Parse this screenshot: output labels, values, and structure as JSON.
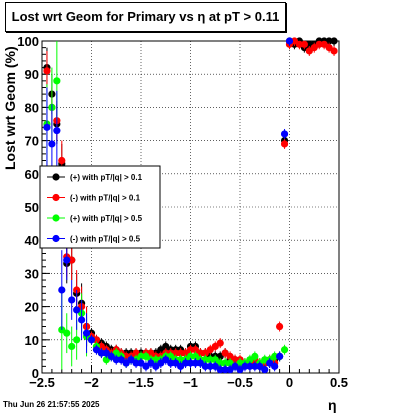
{
  "chart_data": {
    "type": "scatter",
    "title": "Lost wrt Geom for Primary vs    η  at pT > 0.11",
    "xlabel": "η",
    "ylabel": "Lost wrt Geom (%)",
    "xlim": [
      -2.5,
      0.5
    ],
    "ylim": [
      0,
      100
    ],
    "x_ticks": [
      "−2.5",
      "−2",
      "−1.5",
      "−1",
      "−0.5",
      "0",
      "0.5"
    ],
    "y_ticks": [
      "0",
      "10",
      "20",
      "30",
      "40",
      "50",
      "60",
      "70",
      "80",
      "90",
      "100"
    ],
    "grid": true,
    "legend_position": "middle-left",
    "timestamp": "Thu Jun 26 21:57:55 2025",
    "series": [
      {
        "name": "(+) with pT/|q| > 0.1",
        "color": "#000000",
        "x": [
          -2.45,
          -2.4,
          -2.35,
          -2.3,
          -2.25,
          -2.2,
          -2.15,
          -2.1,
          -2.05,
          -2.0,
          -1.95,
          -1.9,
          -1.85,
          -1.8,
          -1.75,
          -1.7,
          -1.65,
          -1.6,
          -1.55,
          -1.5,
          -1.45,
          -1.4,
          -1.35,
          -1.3,
          -1.25,
          -1.2,
          -1.15,
          -1.1,
          -1.05,
          -1.0,
          -0.95,
          -0.9,
          -0.85,
          -0.8,
          -0.75,
          -0.7,
          -0.65,
          -0.6,
          -0.55,
          -0.5,
          -0.45,
          -0.4,
          -0.35,
          -0.3,
          -0.25,
          -0.2,
          -0.15,
          -0.1,
          -0.05,
          0.0,
          0.05,
          0.1,
          0.15,
          0.2,
          0.25,
          0.3,
          0.35,
          0.4,
          0.45
        ],
        "y": [
          92,
          84,
          75,
          63,
          33,
          34,
          24,
          21,
          14,
          12,
          10,
          9,
          8,
          7,
          7,
          6,
          6,
          6,
          6,
          6,
          6,
          6,
          6,
          7,
          8,
          7,
          7,
          7,
          6,
          8,
          8,
          6,
          6,
          5,
          5,
          5,
          6,
          4,
          4,
          3,
          3,
          3,
          3,
          2,
          3,
          3,
          4,
          5,
          70,
          100,
          99,
          100,
          98,
          99,
          99,
          100,
          100,
          100,
          100
        ]
      },
      {
        "name": "(-) with pT/|q| > 0.1",
        "color": "#ff0000",
        "x": [
          -2.45,
          -2.4,
          -2.35,
          -2.3,
          -2.25,
          -2.2,
          -2.15,
          -2.1,
          -2.05,
          -2.0,
          -1.95,
          -1.9,
          -1.85,
          -1.8,
          -1.75,
          -1.7,
          -1.65,
          -1.6,
          -1.55,
          -1.5,
          -1.45,
          -1.4,
          -1.35,
          -1.3,
          -1.25,
          -1.2,
          -1.15,
          -1.1,
          -1.05,
          -1.0,
          -0.95,
          -0.9,
          -0.85,
          -0.8,
          -0.75,
          -0.7,
          -0.65,
          -0.6,
          -0.55,
          -0.5,
          -0.45,
          -0.4,
          -0.35,
          -0.3,
          -0.25,
          -0.2,
          -0.15,
          -0.1,
          -0.05,
          0.0,
          0.05,
          0.1,
          0.15,
          0.2,
          0.25,
          0.3,
          0.35,
          0.4,
          0.45
        ],
        "y": [
          91,
          80,
          76,
          64,
          35,
          34,
          25,
          20,
          14,
          11,
          10,
          8,
          7,
          6,
          7,
          6,
          5,
          5,
          6,
          5,
          6,
          6,
          5,
          5,
          6,
          6,
          6,
          6,
          6,
          7,
          7,
          6,
          6,
          7,
          8,
          9,
          6,
          5,
          4,
          4,
          3,
          3,
          4,
          3,
          3,
          4,
          3,
          14,
          69,
          99,
          100,
          99,
          99,
          97,
          98,
          99,
          99,
          98,
          97
        ]
      },
      {
        "name": "(+) with pT/|q| > 0.5",
        "color": "#00ff00",
        "x": [
          -2.45,
          -2.4,
          -2.35,
          -2.3,
          -2.25,
          -2.2,
          -2.15,
          -2.1,
          -2.05,
          -2.0,
          -1.95,
          -1.9,
          -1.85,
          -1.8,
          -1.75,
          -1.7,
          -1.65,
          -1.6,
          -1.55,
          -1.5,
          -1.45,
          -1.4,
          -1.35,
          -1.3,
          -1.25,
          -1.2,
          -1.15,
          -1.1,
          -1.05,
          -1.0,
          -0.95,
          -0.9,
          -0.85,
          -0.8,
          -0.75,
          -0.7,
          -0.65,
          -0.6,
          -0.55,
          -0.5,
          -0.45,
          -0.4,
          -0.35,
          -0.3,
          -0.25,
          -0.2,
          -0.15,
          -0.1,
          -0.05
        ],
        "y": [
          75,
          80,
          88,
          13,
          12,
          8,
          10,
          18,
          11,
          10,
          8,
          6,
          4,
          5,
          6,
          5,
          3,
          4,
          4,
          5,
          5,
          4,
          4,
          4,
          5,
          5,
          4,
          4,
          4,
          5,
          5,
          4,
          4,
          4,
          4,
          3,
          3,
          3,
          2,
          3,
          3,
          4,
          5,
          3,
          4,
          4,
          5,
          5,
          7
        ]
      },
      {
        "name": "(-) with pT/|q| > 0.5",
        "color": "#0000ff",
        "x": [
          -2.45,
          -2.4,
          -2.35,
          -2.3,
          -2.25,
          -2.2,
          -2.15,
          -2.1,
          -2.05,
          -2.0,
          -1.95,
          -1.9,
          -1.85,
          -1.8,
          -1.75,
          -1.7,
          -1.65,
          -1.6,
          -1.55,
          -1.5,
          -1.45,
          -1.4,
          -1.35,
          -1.3,
          -1.25,
          -1.2,
          -1.15,
          -1.1,
          -1.05,
          -1.0,
          -0.95,
          -0.9,
          -0.85,
          -0.8,
          -0.75,
          -0.7,
          -0.65,
          -0.6,
          -0.55,
          -0.5,
          -0.45,
          -0.4,
          -0.35,
          -0.3,
          -0.25,
          -0.2,
          -0.15,
          -0.1,
          -0.05,
          0.0
        ],
        "y": [
          74,
          69,
          73,
          25,
          34,
          22,
          19,
          16,
          12,
          10,
          7,
          6,
          6,
          5,
          4,
          4,
          3,
          4,
          3,
          3,
          2,
          3,
          2,
          3,
          4,
          3,
          3,
          2,
          3,
          3,
          3,
          3,
          2,
          2,
          2,
          1,
          1,
          1,
          2,
          1,
          2,
          2,
          2,
          2,
          1,
          3,
          2,
          5,
          72,
          100
        ]
      }
    ]
  }
}
